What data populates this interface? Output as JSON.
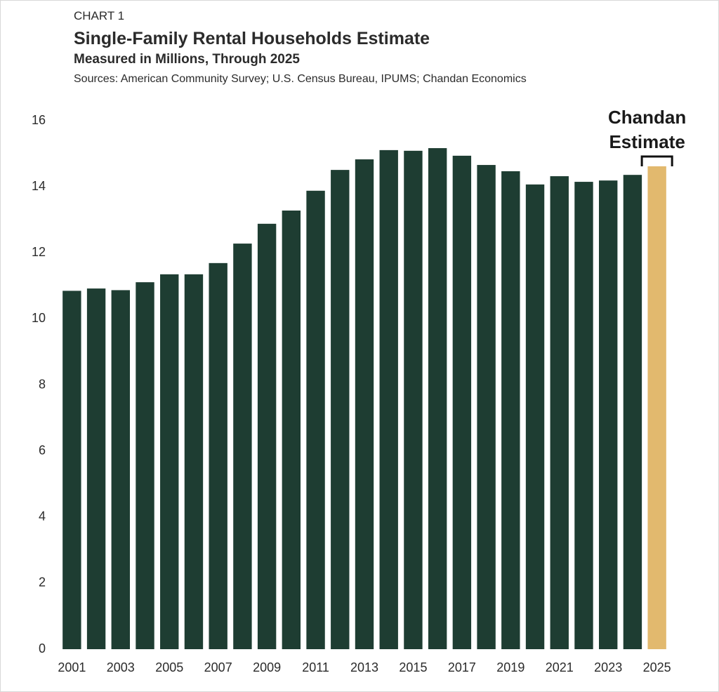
{
  "chart_data": {
    "type": "bar",
    "label": "CHART 1",
    "title": "Single-Family Rental Households Estimate",
    "subtitle": "Measured in Millions, Through 2025",
    "source": "Sources: American Community Survey; U.S. Census Bureau, IPUMS; Chandan Economics",
    "categories": [
      "2001",
      null,
      "2003",
      null,
      "2005",
      null,
      "2007",
      null,
      "2009",
      null,
      "2011",
      null,
      "2013",
      null,
      "2015",
      null,
      "2017",
      null,
      "2019",
      null,
      "2021",
      null,
      "2023",
      null,
      "2025"
    ],
    "values": [
      10.85,
      10.92,
      10.87,
      11.11,
      11.35,
      11.35,
      11.69,
      12.28,
      12.88,
      13.28,
      13.88,
      14.51,
      14.83,
      15.11,
      15.09,
      15.17,
      14.94,
      14.66,
      14.47,
      14.07,
      14.32,
      14.15,
      14.19,
      14.36,
      14.62
    ],
    "colors": [
      "#1e3d32",
      "#1e3d32",
      "#1e3d32",
      "#1e3d32",
      "#1e3d32",
      "#1e3d32",
      "#1e3d32",
      "#1e3d32",
      "#1e3d32",
      "#1e3d32",
      "#1e3d32",
      "#1e3d32",
      "#1e3d32",
      "#1e3d32",
      "#1e3d32",
      "#1e3d32",
      "#1e3d32",
      "#1e3d32",
      "#1e3d32",
      "#1e3d32",
      "#1e3d32",
      "#1e3d32",
      "#1e3d32",
      "#1e3d32",
      "#e2b96e"
    ],
    "annotation": [
      "Chandan",
      "Estimate"
    ],
    "ylim": [
      0,
      16
    ],
    "yticks": [
      0,
      2,
      4,
      6,
      8,
      10,
      12,
      14,
      16
    ],
    "grid": false
  }
}
